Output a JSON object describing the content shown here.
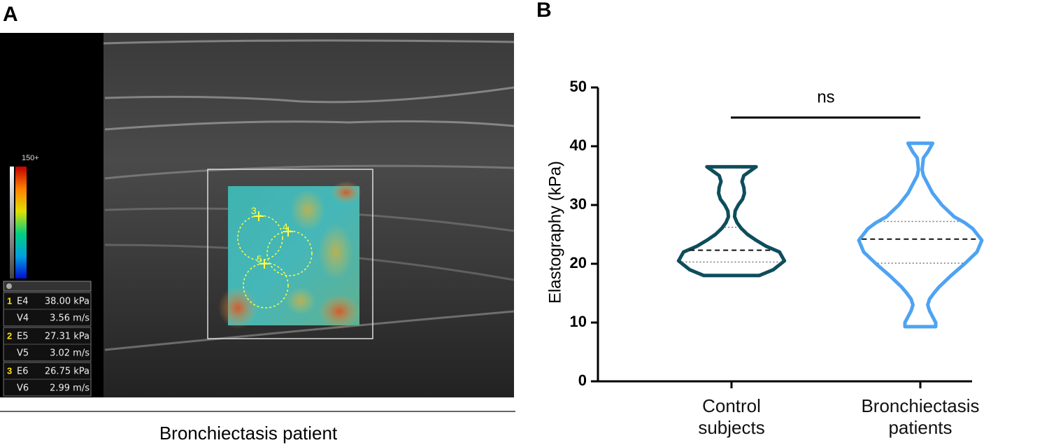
{
  "panel_a": {
    "letter": "A",
    "caption": "Bronchiectasis patient",
    "scale_max_label": "150+",
    "roi_labels": [
      "3",
      "4",
      "5"
    ],
    "measurements": [
      {
        "index": "1",
        "e_name": "E4",
        "e_value": "38.00 kPa",
        "v_name": "V4",
        "v_value": "3.56 m/s"
      },
      {
        "index": "2",
        "e_name": "E5",
        "e_value": "27.31 kPa",
        "v_name": "V5",
        "v_value": "3.02 m/s"
      },
      {
        "index": "3",
        "e_name": "E6",
        "e_value": "26.75 kPa",
        "v_name": "V6",
        "v_value": "2.99 m/s"
      }
    ]
  },
  "chart_data": {
    "type": "violin",
    "panel_letter": "B",
    "y_label": "Elastography (kPa)",
    "annotation": "ns",
    "categories": [
      "Control subjects",
      "Bronchiectasis patients"
    ],
    "ylim": [
      0,
      50
    ],
    "yticks": [
      0,
      10,
      20,
      30,
      40,
      50
    ],
    "series": [
      {
        "name": "Control subjects",
        "color": "#0e4d5c",
        "median": 22.3,
        "q1": 20.3,
        "q3": 26.2,
        "density_y": [
          18,
          19,
          20.5,
          22,
          23,
          24,
          25,
          26,
          27,
          28,
          29,
          30,
          31,
          32,
          33,
          34,
          35,
          36.5
        ],
        "density_width": [
          0.45,
          0.68,
          0.86,
          0.78,
          0.56,
          0.4,
          0.26,
          0.16,
          0.09,
          0.05,
          0.06,
          0.11,
          0.18,
          0.21,
          0.2,
          0.17,
          0.2,
          0.4
        ]
      },
      {
        "name": "Bronchiectasis patients",
        "color": "#4ea3f2",
        "median": 24.2,
        "q1": 20.1,
        "q3": 27.2,
        "density_y": [
          9.3,
          10,
          11,
          12,
          13,
          14,
          15,
          16,
          17,
          18,
          20,
          22,
          24,
          26,
          27,
          28,
          30,
          32,
          34,
          35,
          36,
          38,
          39,
          40.5
        ],
        "density_width": [
          0.25,
          0.25,
          0.2,
          0.15,
          0.12,
          0.15,
          0.22,
          0.3,
          0.4,
          0.5,
          0.72,
          0.92,
          1.0,
          0.85,
          0.72,
          0.55,
          0.35,
          0.2,
          0.1,
          0.05,
          0.03,
          0.05,
          0.12,
          0.2
        ]
      }
    ]
  }
}
